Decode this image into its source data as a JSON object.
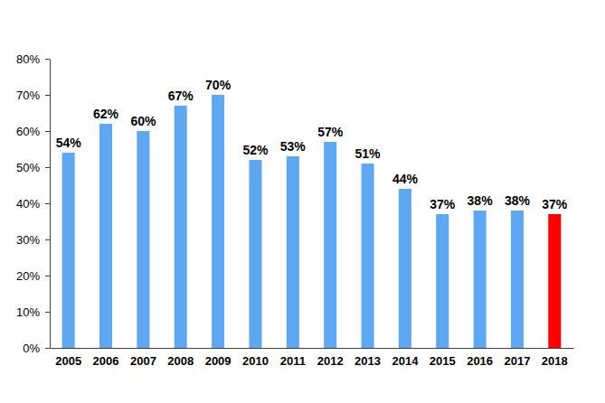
{
  "chart_data": {
    "type": "bar",
    "categories": [
      "2005",
      "2006",
      "2007",
      "2008",
      "2009",
      "2010",
      "2011",
      "2012",
      "2013",
      "2014",
      "2015",
      "2016",
      "2017",
      "2018"
    ],
    "values": [
      54,
      62,
      60,
      67,
      70,
      52,
      53,
      57,
      51,
      44,
      37,
      38,
      38,
      37
    ],
    "value_labels": [
      "54%",
      "62%",
      "60%",
      "67%",
      "70%",
      "52%",
      "53%",
      "57%",
      "51%",
      "44%",
      "37%",
      "38%",
      "38%",
      "37%"
    ],
    "colors": [
      "#5ea8f2",
      "#5ea8f2",
      "#5ea8f2",
      "#5ea8f2",
      "#5ea8f2",
      "#5ea8f2",
      "#5ea8f2",
      "#5ea8f2",
      "#5ea8f2",
      "#5ea8f2",
      "#5ea8f2",
      "#5ea8f2",
      "#5ea8f2",
      "#ff0000"
    ],
    "ylim": [
      0,
      80
    ],
    "yticks": [
      {
        "value": 0,
        "label": "0%"
      },
      {
        "value": 10,
        "label": "10%"
      },
      {
        "value": 20,
        "label": "20%"
      },
      {
        "value": 30,
        "label": "30%"
      },
      {
        "value": 40,
        "label": "40%"
      },
      {
        "value": 50,
        "label": "50%"
      },
      {
        "value": 60,
        "label": "60%"
      },
      {
        "value": 70,
        "label": "70%"
      },
      {
        "value": 80,
        "label": "80%"
      }
    ],
    "grid": false,
    "data_labels": true
  }
}
